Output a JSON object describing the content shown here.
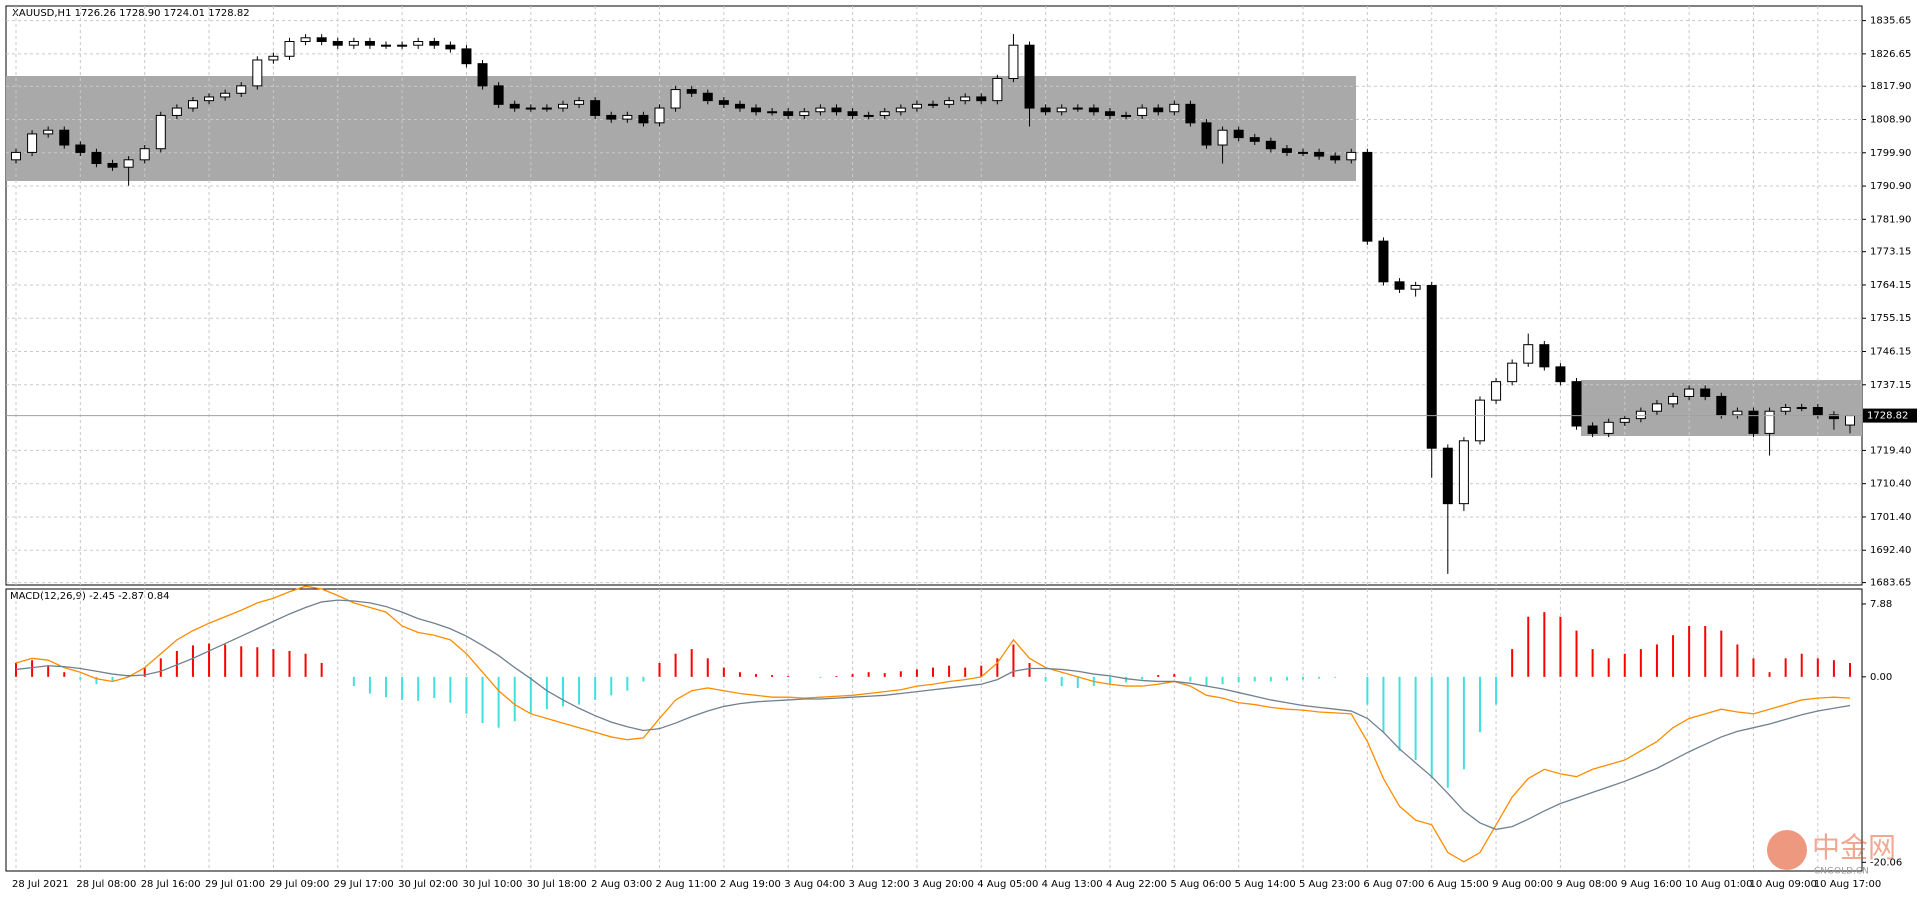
{
  "chart_data": {
    "type": "candlestick",
    "title": "XAUUSD,H1  1726.26 1728.90 1724.01 1728.82",
    "indicator_label": "MACD(12,26,9) -2.45 -2.87 0.84",
    "watermark": "中金网",
    "watermark_sub": "CNGOLD.CN",
    "categories": [
      "28 Jul 2021",
      null,
      null,
      null,
      "28 Jul 08:00",
      null,
      null,
      null,
      "28 Jul 16:00",
      null,
      null,
      null,
      "29 Jul 01:00",
      null,
      null,
      null,
      "29 Jul 09:00",
      null,
      null,
      null,
      "29 Jul 17:00",
      null,
      null,
      null,
      "30 Jul 02:00",
      null,
      null,
      null,
      "30 Jul 10:00",
      null,
      null,
      null,
      "30 Jul 18:00",
      null,
      null,
      null,
      "2 Aug 03:00",
      null,
      null,
      null,
      "2 Aug 11:00",
      null,
      null,
      null,
      "2 Aug 19:00",
      null,
      null,
      null,
      "3 Aug 04:00",
      null,
      null,
      null,
      "3 Aug 12:00",
      null,
      null,
      null,
      "3 Aug 20:00",
      null,
      null,
      null,
      "4 Aug 05:00",
      null,
      null,
      null,
      "4 Aug 13:00",
      null,
      null,
      null,
      "4 Aug 22:00",
      null,
      null,
      null,
      "5 Aug 06:00",
      null,
      null,
      null,
      "5 Aug 14:00",
      null,
      null,
      null,
      "5 Aug 23:00",
      null,
      null,
      null,
      "6 Aug 07:00",
      null,
      null,
      null,
      "6 Aug 15:00",
      null,
      null,
      null,
      "9 Aug 00:00",
      null,
      null,
      null,
      "9 Aug 08:00",
      null,
      null,
      null,
      "9 Aug 16:00",
      null,
      null,
      null,
      "10 Aug 01:00",
      null,
      null,
      null,
      "10 Aug 09:00",
      null,
      null,
      null,
      "10 Aug 17:00",
      null,
      null
    ],
    "open": [
      1798,
      1800,
      1805,
      1806,
      1802,
      1800,
      1797,
      1796,
      1798,
      1801,
      1810,
      1812,
      1814,
      1815,
      1816,
      1818,
      1825,
      1826,
      1830,
      1831,
      1830,
      1829,
      1830,
      1829,
      1829,
      1829,
      1830,
      1829,
      1828,
      1824,
      1818,
      1813,
      1812,
      1812,
      1812,
      1813,
      1814,
      1810,
      1809,
      1810,
      1808,
      1812,
      1817,
      1816,
      1814,
      1813,
      1812,
      1811,
      1811,
      1810,
      1811,
      1812,
      1811,
      1810,
      1810,
      1811,
      1812,
      1813,
      1813,
      1814,
      1815,
      1814,
      1820,
      1829,
      1812,
      1811,
      1812,
      1812,
      1811,
      1810,
      1810,
      1812,
      1811,
      1813,
      1808,
      1802,
      1806,
      1804,
      1803,
      1801,
      1800,
      1800,
      1799,
      1798,
      1800,
      1776,
      1765,
      1763,
      1764,
      1720,
      1705,
      1722,
      1733,
      1738,
      1743,
      1748,
      1742,
      1738,
      1726,
      1724,
      1727,
      1728,
      1730,
      1732,
      1734,
      1736,
      1734,
      1729,
      1730,
      1724,
      1730,
      1731,
      1731,
      1729,
      1726.26
    ],
    "high": [
      1801,
      1806,
      1807,
      1807,
      1803,
      1801,
      1798,
      1799,
      1802,
      1811,
      1813,
      1815,
      1816,
      1817,
      1819,
      1826,
      1827,
      1831,
      1832,
      1832,
      1831,
      1831,
      1831,
      1830,
      1830,
      1831,
      1831,
      1830,
      1829,
      1825,
      1819,
      1814,
      1813,
      1813,
      1814,
      1815,
      1815,
      1811,
      1811,
      1811,
      1813,
      1818,
      1818,
      1817,
      1815,
      1814,
      1813,
      1812,
      1812,
      1812,
      1813,
      1813,
      1812,
      1811,
      1812,
      1813,
      1814,
      1814,
      1815,
      1816,
      1816,
      1821,
      1832,
      1830,
      1813,
      1813,
      1813,
      1813,
      1812,
      1811,
      1813,
      1813,
      1814,
      1814,
      1809,
      1807,
      1807,
      1805,
      1804,
      1802,
      1801,
      1801,
      1800,
      1801,
      1801,
      1777,
      1766,
      1765,
      1765,
      1721,
      1723,
      1734,
      1739,
      1744,
      1751,
      1749,
      1743,
      1739,
      1727,
      1728,
      1729,
      1731,
      1733,
      1735,
      1737,
      1737,
      1735,
      1731,
      1731,
      1731,
      1732,
      1732,
      1732,
      1730,
      1728.9
    ],
    "low": [
      1797,
      1799,
      1804,
      1801,
      1799,
      1796,
      1795,
      1791,
      1797,
      1800,
      1809,
      1811,
      1813,
      1814,
      1815,
      1817,
      1824,
      1825,
      1829,
      1829,
      1828,
      1828,
      1828,
      1828,
      1828,
      1828,
      1828,
      1827,
      1823,
      1817,
      1812,
      1811,
      1811,
      1811,
      1811,
      1812,
      1809,
      1808,
      1808,
      1807,
      1807,
      1811,
      1815,
      1813,
      1812,
      1811,
      1810,
      1810,
      1809,
      1809,
      1810,
      1810,
      1809,
      1809,
      1809,
      1810,
      1811,
      1812,
      1812,
      1813,
      1813,
      1813,
      1819,
      1807,
      1810,
      1810,
      1811,
      1810,
      1809,
      1809,
      1809,
      1810,
      1810,
      1807,
      1801,
      1797,
      1803,
      1802,
      1800,
      1799,
      1799,
      1798,
      1797,
      1797,
      1775,
      1764,
      1762,
      1761,
      1712,
      1686,
      1703,
      1721,
      1732,
      1737,
      1742,
      1741,
      1737,
      1725,
      1723,
      1723,
      1726,
      1727,
      1729,
      1731,
      1733,
      1733,
      1728,
      1728,
      1723,
      1718,
      1729,
      1730,
      1728,
      1725,
      1724.01
    ],
    "close": [
      1800,
      1805,
      1806,
      1802,
      1800,
      1797,
      1796,
      1798,
      1801,
      1810,
      1812,
      1814,
      1815,
      1816,
      1818,
      1825,
      1826,
      1830,
      1831,
      1830,
      1829,
      1830,
      1829,
      1829,
      1829,
      1830,
      1829,
      1828,
      1824,
      1818,
      1813,
      1812,
      1812,
      1812,
      1813,
      1814,
      1810,
      1809,
      1810,
      1808,
      1812,
      1817,
      1816,
      1814,
      1813,
      1812,
      1811,
      1811,
      1810,
      1811,
      1812,
      1811,
      1810,
      1810,
      1811,
      1812,
      1813,
      1813,
      1814,
      1815,
      1814,
      1820,
      1829,
      1812,
      1811,
      1812,
      1812,
      1811,
      1810,
      1810,
      1812,
      1811,
      1813,
      1808,
      1802,
      1806,
      1804,
      1803,
      1801,
      1800,
      1800,
      1799,
      1798,
      1800,
      1776,
      1765,
      1763,
      1764,
      1720,
      1705,
      1722,
      1733,
      1738,
      1743,
      1748,
      1742,
      1738,
      1726,
      1724,
      1727,
      1728,
      1730,
      1732,
      1734,
      1736,
      1734,
      1729,
      1730,
      1724,
      1730,
      1731,
      1731,
      1729,
      1728,
      1728.82
    ],
    "ylim": [
      1683.0,
      1839.6
    ],
    "yticks": [
      {
        "value": 1835.65,
        "label": "1835.65"
      },
      {
        "value": 1826.65,
        "label": "1826.65"
      },
      {
        "value": 1817.9,
        "label": "1817.90"
      },
      {
        "value": 1808.9,
        "label": "1808.90"
      },
      {
        "value": 1799.9,
        "label": "1799.90"
      },
      {
        "value": 1790.9,
        "label": "1790.90"
      },
      {
        "value": 1781.9,
        "label": "1781.90"
      },
      {
        "value": 1773.15,
        "label": "1773.15"
      },
      {
        "value": 1764.15,
        "label": "1764.15"
      },
      {
        "value": 1755.15,
        "label": "1755.15"
      },
      {
        "value": 1746.15,
        "label": "1746.15"
      },
      {
        "value": 1737.15,
        "label": "1737.15"
      },
      {
        "value": 1719.4,
        "label": "1719.40"
      },
      {
        "value": 1710.4,
        "label": "1710.40"
      },
      {
        "value": 1701.4,
        "label": "1701.40"
      },
      {
        "value": 1692.4,
        "label": "1692.40"
      },
      {
        "value": 1683.65,
        "label": "1683.65"
      }
    ],
    "grid": true,
    "y2lim": [
      -21,
      9.5
    ],
    "y2ticks": [
      7.88,
      {
        "value": 0,
        "label": "0.00"
      },
      -20.06
    ],
    "series": [
      {
        "name": "MACD histogram",
        "axis": "y2",
        "type": "bar",
        "color_up": "#ff0000",
        "color_down": "#40e0e0",
        "values": [
          1.5,
          1.8,
          1.2,
          0.5,
          -0.3,
          -0.8,
          -0.5,
          0.2,
          1.0,
          2.0,
          2.8,
          3.4,
          3.6,
          3.5,
          3.3,
          3.2,
          3.0,
          2.8,
          2.5,
          1.5,
          0,
          -1.0,
          -1.8,
          -2.2,
          -2.5,
          -2.6,
          -2.3,
          -2.8,
          -4.0,
          -5.0,
          -5.5,
          -4.8,
          -4.0,
          -3.5,
          -3.2,
          -3.0,
          -2.5,
          -2.0,
          -1.5,
          -0.5,
          1.5,
          2.5,
          3.0,
          2.0,
          1.0,
          0.5,
          0.3,
          0.2,
          0.1,
          0,
          -0.1,
          0.1,
          0.3,
          0.5,
          0.4,
          0.6,
          0.8,
          1.0,
          1.2,
          1.0,
          1.2,
          2.0,
          3.5,
          1.5,
          -0.5,
          -1.0,
          -1.2,
          -1.0,
          -0.8,
          -0.6,
          -0.3,
          0.2,
          0.3,
          -0.5,
          -1.0,
          -0.8,
          -0.6,
          -0.5,
          -0.5,
          -0.4,
          -0.3,
          -0.2,
          -0.1,
          0,
          -3.0,
          -6.0,
          -8.0,
          -9.0,
          -11,
          -12,
          -10,
          -6,
          -3,
          3,
          6.5,
          7.0,
          6.5,
          5.0,
          3.0,
          2.0,
          2.5,
          3.0,
          3.5,
          4.5,
          5.5,
          5.5,
          5.0,
          3.5,
          2.0,
          0.5,
          2.0,
          2.5,
          2.0,
          1.8,
          1.5
        ]
      },
      {
        "name": "MACD",
        "axis": "y2",
        "type": "line",
        "color": "#ff8c00",
        "values": [
          1.5,
          2.0,
          1.8,
          1.0,
          0.5,
          -0.2,
          -0.5,
          0.0,
          1.0,
          2.5,
          4.0,
          5.0,
          5.8,
          6.5,
          7.2,
          8.0,
          8.5,
          9.2,
          9.8,
          9.5,
          8.8,
          8.0,
          7.5,
          7.0,
          5.5,
          4.8,
          4.5,
          4.0,
          2.5,
          0.5,
          -1.5,
          -3.0,
          -4.0,
          -4.5,
          -5.0,
          -5.5,
          -6.0,
          -6.5,
          -6.8,
          -6.6,
          -4.5,
          -2.5,
          -1.5,
          -1.2,
          -1.5,
          -1.8,
          -2.0,
          -2.2,
          -2.2,
          -2.3,
          -2.2,
          -2.1,
          -2.0,
          -1.8,
          -1.6,
          -1.4,
          -1.0,
          -0.8,
          -0.5,
          -0.3,
          0,
          1.5,
          4.0,
          2.0,
          1.0,
          0.5,
          0,
          -0.5,
          -0.8,
          -1.0,
          -1.0,
          -0.8,
          -0.5,
          -1.0,
          -2.0,
          -2.3,
          -2.8,
          -3.0,
          -3.3,
          -3.5,
          -3.6,
          -3.8,
          -3.9,
          -4.0,
          -7,
          -11,
          -14,
          -15.5,
          -16,
          -19,
          -20,
          -19,
          -16,
          -13,
          -11,
          -10,
          -10.5,
          -10.8,
          -10,
          -9.5,
          -9,
          -8,
          -7,
          -5.5,
          -4.5,
          -4,
          -3.5,
          -3.8,
          -4,
          -3.5,
          -3,
          -2.5,
          -2.3,
          -2.2,
          -2.3
        ]
      },
      {
        "name": "Signal",
        "axis": "y2",
        "type": "line",
        "color": "#708090",
        "values": [
          0.8,
          1.0,
          1.2,
          1.1,
          0.9,
          0.6,
          0.3,
          0.1,
          0.2,
          0.6,
          1.3,
          2.0,
          2.8,
          3.6,
          4.4,
          5.2,
          6.0,
          6.8,
          7.5,
          8.1,
          8.3,
          8.2,
          8.0,
          7.6,
          7.0,
          6.3,
          5.8,
          5.2,
          4.4,
          3.4,
          2.3,
          1.0,
          -0.2,
          -1.5,
          -2.5,
          -3.4,
          -4.2,
          -4.9,
          -5.4,
          -5.8,
          -5.6,
          -5.0,
          -4.3,
          -3.7,
          -3.2,
          -2.9,
          -2.7,
          -2.6,
          -2.5,
          -2.4,
          -2.4,
          -2.3,
          -2.2,
          -2.1,
          -2.0,
          -1.8,
          -1.6,
          -1.4,
          -1.2,
          -1.0,
          -0.8,
          -0.3,
          0.6,
          0.9,
          0.9,
          0.8,
          0.6,
          0.3,
          0.1,
          -0.2,
          -0.4,
          -0.5,
          -0.5,
          -0.7,
          -1.0,
          -1.3,
          -1.7,
          -2.1,
          -2.5,
          -2.8,
          -3.1,
          -3.3,
          -3.5,
          -3.7,
          -4.5,
          -6.0,
          -7.8,
          -9.3,
          -10.8,
          -12.6,
          -14.5,
          -15.8,
          -16.5,
          -16.2,
          -15.4,
          -14.5,
          -13.7,
          -13.1,
          -12.5,
          -11.9,
          -11.3,
          -10.6,
          -9.9,
          -9.0,
          -8.1,
          -7.3,
          -6.5,
          -5.9,
          -5.5,
          -5.1,
          -4.6,
          -4.1,
          -3.7,
          -3.4,
          -3.1
        ]
      }
    ]
  }
}
